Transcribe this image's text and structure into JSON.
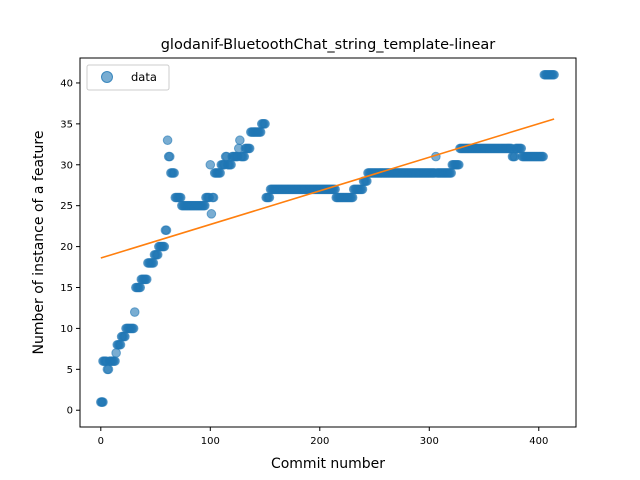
{
  "chart_data": {
    "type": "scatter",
    "title": "glodanif-BluetoothChat_string_template-linear",
    "xlabel": "Commit number",
    "ylabel": "Number of instance of a feature",
    "xlim": [
      -19,
      434
    ],
    "ylim": [
      -2.05,
      43.05
    ],
    "xticks": [
      0,
      100,
      200,
      300,
      400
    ],
    "yticks": [
      0,
      5,
      10,
      15,
      20,
      25,
      30,
      35,
      40
    ],
    "grid": false,
    "legend": {
      "position": "upper-left",
      "label": "data"
    },
    "colors": {
      "points": "#1f77b4",
      "fit": "#ff7f0e"
    },
    "series": [
      {
        "name": "data",
        "segments": [
          [
            0,
            1,
            1
          ],
          [
            1,
            2,
            1
          ],
          [
            2,
            5,
            6
          ],
          [
            6,
            7,
            5
          ],
          [
            8,
            13,
            6
          ],
          [
            14,
            14,
            7
          ],
          [
            15,
            18,
            8
          ],
          [
            19,
            22,
            9
          ],
          [
            23,
            30,
            10
          ],
          [
            31,
            31,
            12
          ],
          [
            32,
            36,
            15
          ],
          [
            37,
            42,
            16
          ],
          [
            43,
            48,
            18
          ],
          [
            49,
            52,
            19
          ],
          [
            53,
            58,
            20
          ],
          [
            59,
            60,
            22
          ],
          [
            61,
            61,
            33
          ],
          [
            62,
            63,
            31
          ],
          [
            64,
            67,
            29
          ],
          [
            68,
            73,
            26
          ],
          [
            74,
            95,
            25
          ],
          [
            96,
            99,
            26
          ],
          [
            100,
            100,
            30
          ],
          [
            101,
            101,
            24
          ],
          [
            102,
            103,
            26
          ],
          [
            104,
            109,
            29
          ],
          [
            110,
            113,
            30
          ],
          [
            114,
            115,
            31
          ],
          [
            116,
            119,
            30
          ],
          [
            120,
            125,
            31
          ],
          [
            126,
            126,
            32
          ],
          [
            127,
            127,
            33
          ],
          [
            128,
            131,
            31
          ],
          [
            132,
            136,
            32
          ],
          [
            137,
            138,
            34
          ],
          [
            139,
            146,
            34
          ],
          [
            147,
            150,
            35
          ],
          [
            151,
            154,
            26
          ],
          [
            155,
            214,
            27
          ],
          [
            215,
            230,
            26
          ],
          [
            231,
            239,
            27
          ],
          [
            240,
            243,
            28
          ],
          [
            244,
            258,
            29
          ],
          [
            259,
            305,
            29
          ],
          [
            306,
            306,
            31
          ],
          [
            307,
            320,
            29
          ],
          [
            321,
            327,
            30
          ],
          [
            328,
            375,
            32
          ],
          [
            376,
            378,
            31
          ],
          [
            379,
            384,
            32
          ],
          [
            385,
            404,
            31
          ],
          [
            405,
            414,
            41
          ]
        ]
      },
      {
        "name": "fit",
        "type": "line",
        "x": [
          0,
          414
        ],
        "y": [
          18.6,
          35.6
        ]
      }
    ]
  }
}
